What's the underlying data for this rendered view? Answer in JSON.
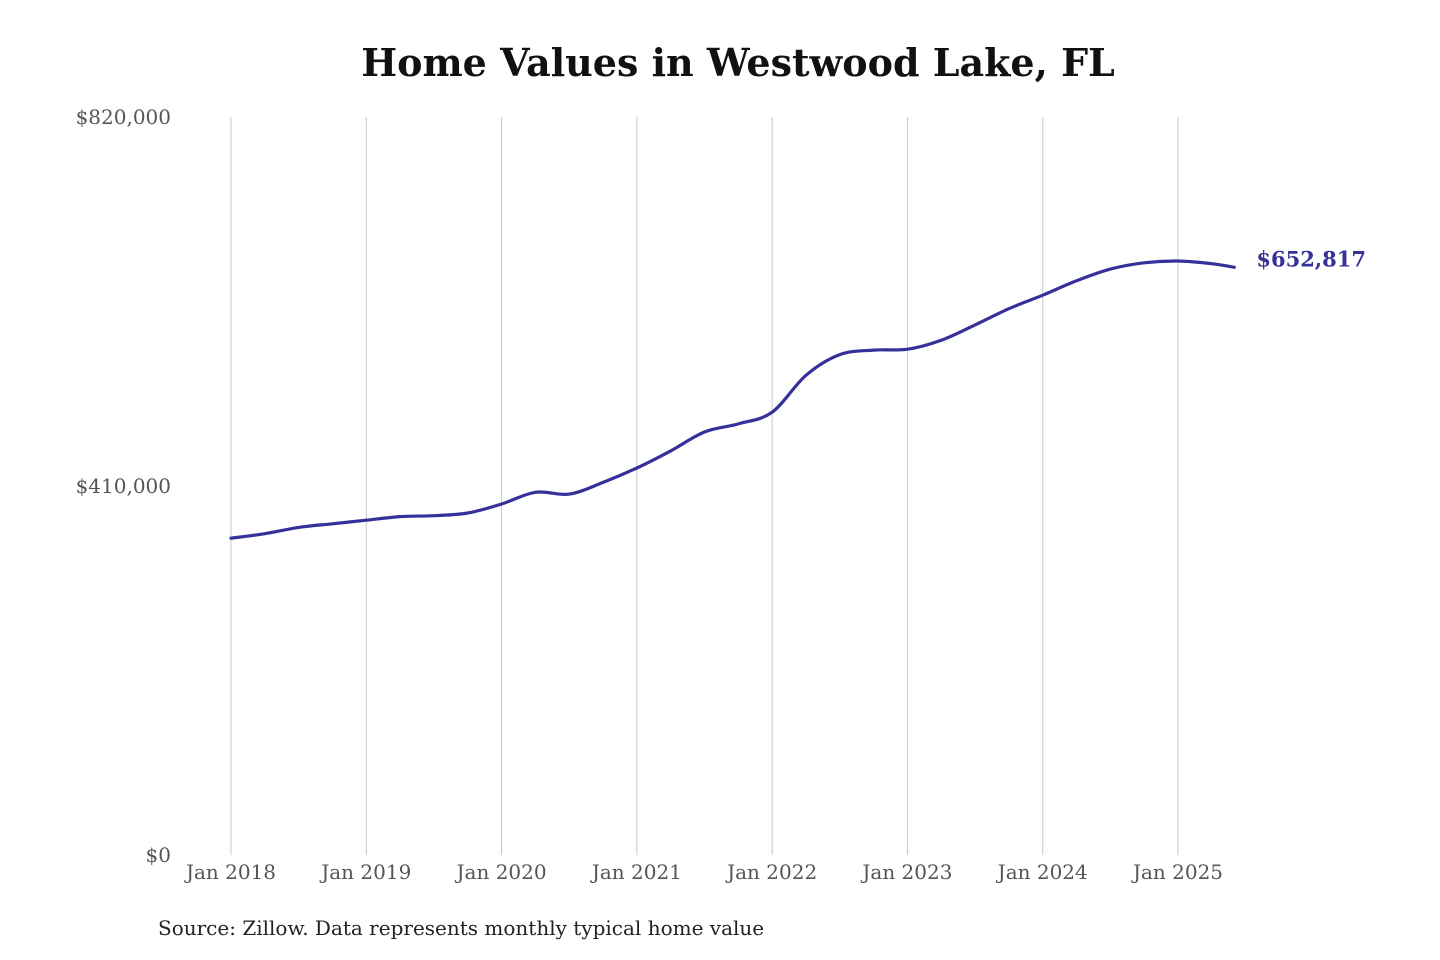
{
  "chart_data": {
    "type": "line",
    "title": "Home Values in Westwood Lake, FL",
    "source": "Source: Zillow. Data represents monthly typical home value",
    "ylim": [
      0,
      820000
    ],
    "y_ticks": [
      {
        "value": 0,
        "label": "$0"
      },
      {
        "value": 410000,
        "label": "$410,000"
      },
      {
        "value": 820000,
        "label": "$820,000"
      }
    ],
    "x_ticks": [
      {
        "value": "2018-01",
        "label": "Jan 2018"
      },
      {
        "value": "2019-01",
        "label": "Jan 2019"
      },
      {
        "value": "2020-01",
        "label": "Jan 2020"
      },
      {
        "value": "2021-01",
        "label": "Jan 2021"
      },
      {
        "value": "2022-01",
        "label": "Jan 2022"
      },
      {
        "value": "2023-01",
        "label": "Jan 2023"
      },
      {
        "value": "2024-01",
        "label": "Jan 2024"
      },
      {
        "value": "2025-01",
        "label": "Jan 2025"
      }
    ],
    "grid": "vertical",
    "series": [
      {
        "color": "#36309a",
        "end_label": "$652,817",
        "points": [
          {
            "x": "2018-01",
            "y": 352000
          },
          {
            "x": "2018-04",
            "y": 357000
          },
          {
            "x": "2018-07",
            "y": 364000
          },
          {
            "x": "2018-10",
            "y": 368000
          },
          {
            "x": "2019-01",
            "y": 372000
          },
          {
            "x": "2019-04",
            "y": 376000
          },
          {
            "x": "2019-07",
            "y": 377000
          },
          {
            "x": "2019-10",
            "y": 380000
          },
          {
            "x": "2020-01",
            "y": 390000
          },
          {
            "x": "2020-04",
            "y": 403000
          },
          {
            "x": "2020-07",
            "y": 401000
          },
          {
            "x": "2020-10",
            "y": 414000
          },
          {
            "x": "2021-01",
            "y": 430000
          },
          {
            "x": "2021-04",
            "y": 449000
          },
          {
            "x": "2021-07",
            "y": 470000
          },
          {
            "x": "2021-10",
            "y": 479000
          },
          {
            "x": "2022-01",
            "y": 492000
          },
          {
            "x": "2022-04",
            "y": 533000
          },
          {
            "x": "2022-07",
            "y": 556000
          },
          {
            "x": "2022-10",
            "y": 561000
          },
          {
            "x": "2023-01",
            "y": 562000
          },
          {
            "x": "2023-04",
            "y": 572000
          },
          {
            "x": "2023-07",
            "y": 589000
          },
          {
            "x": "2023-10",
            "y": 607000
          },
          {
            "x": "2024-01",
            "y": 622000
          },
          {
            "x": "2024-04",
            "y": 638000
          },
          {
            "x": "2024-07",
            "y": 651000
          },
          {
            "x": "2024-10",
            "y": 658000
          },
          {
            "x": "2025-01",
            "y": 660000
          },
          {
            "x": "2025-04",
            "y": 657000
          },
          {
            "x": "2025-06",
            "y": 653000
          }
        ]
      }
    ]
  }
}
